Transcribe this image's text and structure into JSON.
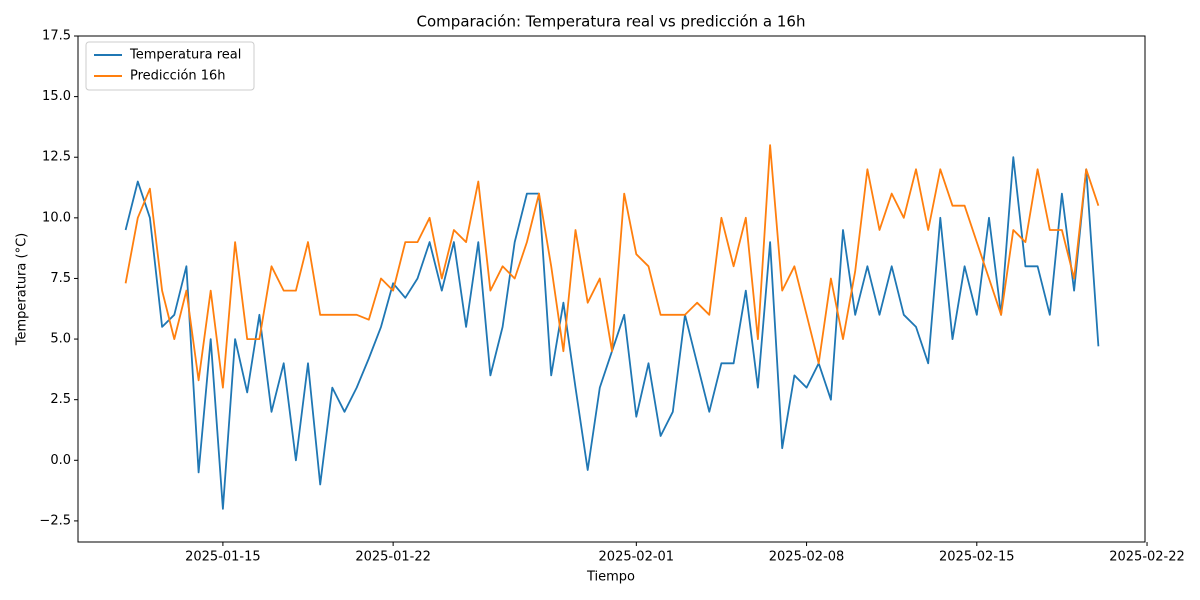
{
  "chart_data": {
    "type": "line",
    "title": "Comparación: Temperatura real vs predicción a 16h",
    "x_label": "Tiempo",
    "y_label": "Temperatura (°C)",
    "x": [
      "2025-01-11 00:00",
      "2025-01-11 12:00",
      "2025-01-12 00:00",
      "2025-01-12 12:00",
      "2025-01-13 00:00",
      "2025-01-13 12:00",
      "2025-01-14 00:00",
      "2025-01-14 12:00",
      "2025-01-15 00:00",
      "2025-01-15 12:00",
      "2025-01-16 00:00",
      "2025-01-16 12:00",
      "2025-01-17 00:00",
      "2025-01-17 12:00",
      "2025-01-18 00:00",
      "2025-01-18 12:00",
      "2025-01-19 00:00",
      "2025-01-19 12:00",
      "2025-01-20 00:00",
      "2025-01-20 12:00",
      "2025-01-21 00:00",
      "2025-01-21 12:00",
      "2025-01-22 00:00",
      "2025-01-22 12:00",
      "2025-01-23 00:00",
      "2025-01-23 12:00",
      "2025-01-24 00:00",
      "2025-01-24 12:00",
      "2025-01-25 00:00",
      "2025-01-25 12:00",
      "2025-01-26 00:00",
      "2025-01-26 12:00",
      "2025-01-27 00:00",
      "2025-01-27 12:00",
      "2025-01-28 00:00",
      "2025-01-28 12:00",
      "2025-01-29 00:00",
      "2025-01-29 12:00",
      "2025-01-30 00:00",
      "2025-01-30 12:00",
      "2025-01-31 00:00",
      "2025-01-31 12:00",
      "2025-02-01 00:00",
      "2025-02-01 12:00",
      "2025-02-02 00:00",
      "2025-02-02 12:00",
      "2025-02-03 00:00",
      "2025-02-03 12:00",
      "2025-02-04 00:00",
      "2025-02-04 12:00",
      "2025-02-05 00:00",
      "2025-02-05 12:00",
      "2025-02-06 00:00",
      "2025-02-06 12:00",
      "2025-02-07 00:00",
      "2025-02-07 12:00",
      "2025-02-08 00:00",
      "2025-02-08 12:00",
      "2025-02-09 00:00",
      "2025-02-09 12:00",
      "2025-02-10 00:00",
      "2025-02-10 12:00",
      "2025-02-11 00:00",
      "2025-02-11 12:00",
      "2025-02-12 00:00",
      "2025-02-12 12:00",
      "2025-02-13 00:00",
      "2025-02-13 12:00",
      "2025-02-14 00:00",
      "2025-02-14 12:00",
      "2025-02-15 00:00",
      "2025-02-15 12:00",
      "2025-02-16 00:00",
      "2025-02-16 12:00",
      "2025-02-17 00:00",
      "2025-02-17 12:00",
      "2025-02-18 00:00",
      "2025-02-18 12:00",
      "2025-02-19 00:00",
      "2025-02-19 12:00",
      "2025-02-20 00:00"
    ],
    "series": [
      {
        "name": "Temperatura real",
        "color": "#1f77b4",
        "values": [
          9.5,
          11.5,
          10,
          5.5,
          6,
          8,
          -0.5,
          5,
          -2,
          5,
          2.8,
          6,
          2,
          4,
          0,
          4,
          -1,
          3,
          2,
          3,
          4.2,
          5.5,
          7.3,
          6.7,
          7.5,
          9,
          7,
          9,
          5.5,
          9,
          3.5,
          5.5,
          9,
          11,
          11,
          3.5,
          6.5,
          3,
          -0.4,
          3,
          4.5,
          6,
          1.8,
          4,
          1,
          2,
          6,
          4,
          2,
          4,
          4,
          7,
          3,
          9,
          0.5,
          3.5,
          3,
          4,
          2.5,
          9.5,
          6,
          8,
          6,
          8,
          6,
          5.5,
          4,
          10,
          5,
          8,
          6,
          10,
          6,
          12.5,
          8,
          8,
          6,
          11,
          7,
          12,
          4.7
        ]
      },
      {
        "name": "Predicción 16h",
        "color": "#ff7f0e",
        "values": [
          7.3,
          10,
          11.2,
          7,
          5,
          7,
          3.3,
          7,
          3,
          9,
          5,
          5,
          8,
          7,
          7,
          9,
          6,
          6,
          6,
          6,
          5.8,
          7.5,
          7,
          9,
          9,
          10,
          7.5,
          9.5,
          9,
          11.5,
          7,
          8,
          7.5,
          9,
          11,
          8,
          4.5,
          9.5,
          6.5,
          7.5,
          4.5,
          11,
          8.5,
          8,
          6,
          6,
          6,
          6.5,
          6,
          10,
          8,
          10,
          5,
          13,
          7,
          8,
          6,
          4,
          7.5,
          5,
          7.8,
          12,
          9.5,
          11,
          10,
          12,
          9.5,
          12,
          10.5,
          10.5,
          9,
          7.5,
          6,
          9.5,
          9,
          12,
          9.5,
          9.5,
          7.5,
          12,
          10.5
        ]
      }
    ],
    "xlim": [
      "2025-01-09 01:00",
      "2025-02-21 22:00"
    ],
    "xticks": [
      "2025-01-15",
      "2025-01-22",
      "2025-02-01",
      "2025-02-08",
      "2025-02-15",
      "2025-02-22"
    ],
    "ylim": [
      -3.37,
      17.5
    ],
    "yticks": [
      {
        "value": -2.5,
        "label": "−2.5"
      },
      {
        "value": 0,
        "label": "0.0"
      },
      2.5,
      {
        "value": 5,
        "label": "5.0"
      },
      7.5,
      {
        "value": 10,
        "label": "10.0"
      },
      12.5,
      {
        "value": 15,
        "label": "15.0"
      },
      17.5
    ],
    "legend": "upper left",
    "grid": false
  }
}
